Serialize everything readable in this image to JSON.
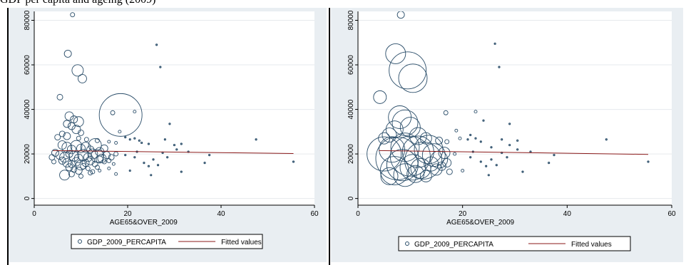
{
  "caption": "GDP per capita and ageing (2009)",
  "colors": {
    "markers": "#2a4d69",
    "fit": "#8b1a1a",
    "frame": "#e9eef2"
  },
  "chart_data": [
    {
      "type": "scatter",
      "title": "",
      "xlabel": "AGE65&OVER_2009",
      "ylabel": "",
      "xlim": [
        0,
        60
      ],
      "ylim": [
        -3000,
        84000
      ],
      "x_ticks": [
        0,
        20,
        40,
        60
      ],
      "y_ticks": [
        0,
        20000,
        40000,
        60000,
        80000
      ],
      "grid": true,
      "legend_position": "bottom",
      "legend": [
        "GDP_2009_PERCAPITA",
        "Fitted values"
      ],
      "marker": "hollow-circle-weighted",
      "series": [
        {
          "name": "GDP_2009_PERCAPITA",
          "points": [
            [
              8.2,
              82500,
              3
            ],
            [
              7.2,
              65000,
              5
            ],
            [
              9.3,
              57500,
              8
            ],
            [
              10.3,
              53800,
              6
            ],
            [
              5.5,
              45500,
              4
            ],
            [
              26.2,
              69000,
              1
            ],
            [
              27.0,
              59000,
              1
            ],
            [
              16.8,
              38500,
              3
            ],
            [
              18.5,
              37500,
              30
            ],
            [
              18.3,
              30000,
              2
            ],
            [
              21.5,
              39000,
              2
            ],
            [
              7.5,
              37000,
              6
            ],
            [
              8.5,
              35500,
              5
            ],
            [
              9.5,
              34500,
              7
            ],
            [
              7.0,
              33500,
              5
            ],
            [
              8.0,
              32500,
              5
            ],
            [
              9.0,
              31000,
              6
            ],
            [
              10.0,
              29500,
              4
            ],
            [
              6.0,
              29000,
              4
            ],
            [
              7.0,
              28000,
              5
            ],
            [
              5.0,
              27500,
              4
            ],
            [
              9.5,
              27000,
              3
            ],
            [
              11.2,
              26500,
              3
            ],
            [
              13.5,
              26000,
              3
            ],
            [
              16.0,
              25500,
              2
            ],
            [
              17.5,
              25000,
              2
            ],
            [
              19.5,
              27500,
              1
            ],
            [
              20.5,
              26500,
              1
            ],
            [
              21.5,
              27000,
              1
            ],
            [
              22.5,
              26000,
              1
            ],
            [
              23.0,
              25000,
              1
            ],
            [
              24.5,
              24500,
              1
            ],
            [
              28.0,
              26500,
              1
            ],
            [
              29.0,
              33500,
              1
            ],
            [
              30.0,
              24000,
              1
            ],
            [
              31.5,
              24500,
              1
            ],
            [
              6.0,
              24000,
              6
            ],
            [
              7.0,
              23000,
              7
            ],
            [
              8.0,
              22000,
              6
            ],
            [
              9.0,
              23500,
              8
            ],
            [
              10.0,
              22500,
              6
            ],
            [
              11.0,
              23000,
              7
            ],
            [
              12.0,
              22000,
              5
            ],
            [
              13.0,
              24000,
              9
            ],
            [
              14.0,
              21000,
              6
            ],
            [
              15.0,
              22500,
              5
            ],
            [
              4.5,
              20500,
              5
            ],
            [
              5.5,
              19500,
              6
            ],
            [
              6.5,
              18500,
              7
            ],
            [
              7.5,
              20000,
              5
            ],
            [
              8.5,
              19000,
              7
            ],
            [
              9.5,
              18000,
              6
            ],
            [
              10.5,
              19500,
              8
            ],
            [
              11.5,
              18500,
              6
            ],
            [
              12.5,
              20000,
              7
            ],
            [
              13.5,
              19000,
              9
            ],
            [
              14.5,
              18000,
              6
            ],
            [
              15.5,
              19500,
              5
            ],
            [
              16.5,
              18500,
              4
            ],
            [
              17.5,
              20000,
              3
            ],
            [
              6.0,
              17000,
              5
            ],
            [
              7.0,
              16000,
              6
            ],
            [
              8.0,
              15500,
              5
            ],
            [
              9.0,
              16500,
              6
            ],
            [
              10.0,
              15000,
              7
            ],
            [
              11.0,
              16000,
              5
            ],
            [
              12.0,
              17000,
              6
            ],
            [
              13.0,
              15500,
              4
            ],
            [
              14.0,
              17500,
              5
            ],
            [
              15.0,
              16500,
              3
            ],
            [
              16.0,
              17000,
              3
            ],
            [
              17.0,
              15500,
              2
            ],
            [
              7.5,
              14000,
              5
            ],
            [
              8.5,
              13000,
              4
            ],
            [
              9.5,
              12500,
              5
            ],
            [
              10.5,
              14500,
              4
            ],
            [
              11.5,
              13500,
              3
            ],
            [
              12.5,
              12000,
              3
            ],
            [
              13.5,
              14000,
              3
            ],
            [
              6.5,
              10500,
              7
            ],
            [
              8.0,
              11000,
              4
            ],
            [
              10.0,
              10000,
              3
            ],
            [
              12.0,
              11500,
              3
            ],
            [
              14.0,
              12500,
              2
            ],
            [
              16.0,
              13500,
              2
            ],
            [
              17.5,
              11000,
              2
            ],
            [
              3.8,
              18500,
              4
            ],
            [
              4.2,
              16500,
              3
            ],
            [
              19.5,
              19500,
              1
            ],
            [
              20.5,
              12500,
              1
            ],
            [
              21.5,
              18500,
              1
            ],
            [
              22.0,
              21000,
              1
            ],
            [
              23.5,
              16000,
              1
            ],
            [
              24.5,
              14500,
              1
            ],
            [
              25.5,
              17500,
              1
            ],
            [
              26.5,
              15000,
              1
            ],
            [
              25.0,
              10500,
              1
            ],
            [
              27.5,
              20500,
              1
            ],
            [
              28.5,
              18500,
              1
            ],
            [
              30.5,
              22000,
              1
            ],
            [
              31.5,
              12000,
              1
            ],
            [
              33.0,
              21000,
              1
            ],
            [
              36.5,
              16000,
              1
            ],
            [
              37.5,
              19500,
              1
            ],
            [
              47.5,
              26500,
              1
            ],
            [
              55.5,
              16500,
              1
            ]
          ]
        }
      ],
      "fit": {
        "name": "Fitted values",
        "x": [
          4,
          55.5
        ],
        "y": [
          21500,
          20200
        ]
      }
    },
    {
      "type": "scatter",
      "title": "",
      "xlabel": "AGE65&OVER_2009",
      "ylabel": "",
      "xlim": [
        0,
        60
      ],
      "ylim": [
        -3000,
        84000
      ],
      "x_ticks": [
        0,
        20,
        40,
        60
      ],
      "y_ticks": [
        0,
        20000,
        40000,
        60000,
        80000
      ],
      "grid": true,
      "legend_position": "bottom",
      "legend": [
        "GDP_2009_PERCAPITA",
        "Fitted values"
      ],
      "marker": "hollow-circle-weighted",
      "series": [
        {
          "name": "GDP_2009_PERCAPITA",
          "points": [
            [
              8.2,
              82500,
              5
            ],
            [
              7.2,
              65000,
              14
            ],
            [
              9.5,
              57500,
              26
            ],
            [
              10.5,
              54000,
              20
            ],
            [
              4.2,
              45500,
              9
            ],
            [
              26.2,
              69500,
              1
            ],
            [
              27.0,
              59000,
              1
            ],
            [
              16.8,
              38500,
              3
            ],
            [
              18.8,
              30500,
              2
            ],
            [
              22.5,
              39000,
              2
            ],
            [
              24.0,
              35000,
              1
            ],
            [
              29.0,
              33500,
              1
            ],
            [
              8.0,
              36500,
              16
            ],
            [
              9.0,
              34000,
              18
            ],
            [
              10.0,
              32000,
              14
            ],
            [
              7.0,
              31000,
              12
            ],
            [
              6.0,
              28500,
              10
            ],
            [
              5.0,
              27000,
              8
            ],
            [
              11.5,
              28000,
              12
            ],
            [
              13.0,
              27000,
              8
            ],
            [
              15.5,
              26000,
              5
            ],
            [
              17.0,
              25500,
              3
            ],
            [
              19.5,
              27000,
              2
            ],
            [
              21.0,
              26500,
              1
            ],
            [
              21.5,
              28500,
              1
            ],
            [
              22.5,
              27000,
              1
            ],
            [
              23.5,
              25500,
              1
            ],
            [
              25.5,
              23000,
              1
            ],
            [
              27.5,
              26500,
              1
            ],
            [
              29.0,
              24000,
              1
            ],
            [
              30.5,
              26000,
              1
            ],
            [
              5.0,
              20000,
              24
            ],
            [
              6.5,
              22000,
              18
            ],
            [
              7.5,
              18000,
              30
            ],
            [
              9.0,
              23000,
              20
            ],
            [
              10.0,
              19000,
              28
            ],
            [
              11.5,
              21000,
              22
            ],
            [
              12.5,
              17000,
              26
            ],
            [
              13.5,
              22000,
              20
            ],
            [
              14.5,
              19500,
              16
            ],
            [
              15.5,
              17500,
              12
            ],
            [
              16.5,
              20500,
              8
            ],
            [
              17.0,
              16000,
              6
            ],
            [
              8.5,
              15000,
              22
            ],
            [
              10.5,
              14000,
              18
            ],
            [
              12.0,
              13500,
              14
            ],
            [
              14.0,
              15500,
              10
            ],
            [
              15.0,
              13000,
              8
            ],
            [
              16.0,
              14500,
              6
            ],
            [
              17.5,
              12000,
              4
            ],
            [
              7.0,
              12500,
              20
            ],
            [
              9.0,
              10500,
              16
            ],
            [
              11.0,
              11000,
              12
            ],
            [
              13.0,
              10000,
              8
            ],
            [
              6.0,
              10000,
              12
            ],
            [
              18.5,
              20000,
              2
            ],
            [
              20.0,
              12500,
              2
            ],
            [
              21.5,
              18500,
              1
            ],
            [
              22.0,
              21000,
              1
            ],
            [
              23.5,
              16500,
              1
            ],
            [
              24.5,
              14500,
              1
            ],
            [
              25.5,
              17500,
              1
            ],
            [
              26.5,
              15000,
              1
            ],
            [
              25.0,
              10500,
              1
            ],
            [
              27.5,
              20500,
              1
            ],
            [
              28.5,
              18500,
              1
            ],
            [
              30.5,
              22000,
              1
            ],
            [
              31.5,
              12000,
              1
            ],
            [
              33.0,
              21000,
              1
            ],
            [
              36.5,
              16000,
              1
            ],
            [
              37.5,
              19500,
              1
            ],
            [
              47.5,
              26500,
              1
            ],
            [
              55.5,
              16500,
              1
            ]
          ]
        }
      ],
      "fit": {
        "name": "Fitted values",
        "x": [
          4,
          55.5
        ],
        "y": [
          21500,
          19800
        ]
      }
    }
  ]
}
